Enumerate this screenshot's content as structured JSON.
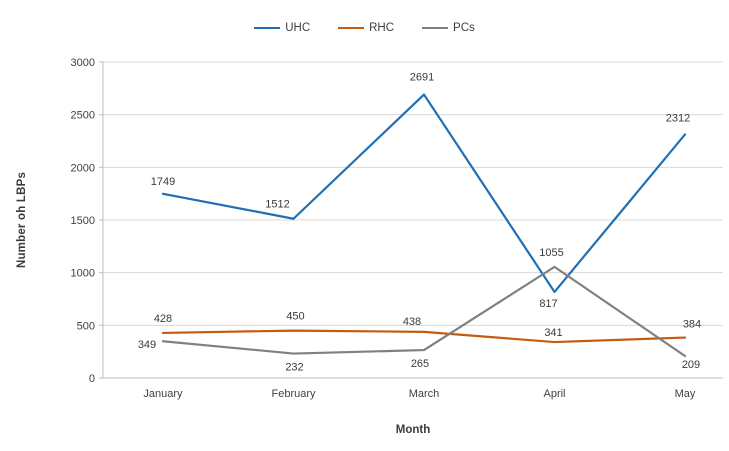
{
  "chart_data": {
    "type": "line",
    "title": "",
    "categories": [
      "January",
      "February",
      "March",
      "April",
      "May"
    ],
    "series": [
      {
        "name": "UHC",
        "color": "#1F6FB5",
        "values": [
          1749,
          1512,
          2691,
          817,
          2312
        ]
      },
      {
        "name": "RHC",
        "color": "#C55A11",
        "values": [
          428,
          450,
          438,
          341,
          384
        ]
      },
      {
        "name": "PCs",
        "color": "#808080",
        "values": [
          349,
          232,
          265,
          1055,
          209
        ]
      }
    ],
    "xlabel": "Month",
    "ylabel": "Number oh LBPs",
    "ylim": [
      0,
      3000
    ],
    "yticks": [
      0,
      500,
      1000,
      1500,
      2000,
      2500,
      3000
    ],
    "grid": true,
    "legend_position": "top-center",
    "data_labels": true,
    "colors": {
      "gridline": "#D9D9D9",
      "axis": "#BFBFBF",
      "text": "#404040"
    }
  }
}
